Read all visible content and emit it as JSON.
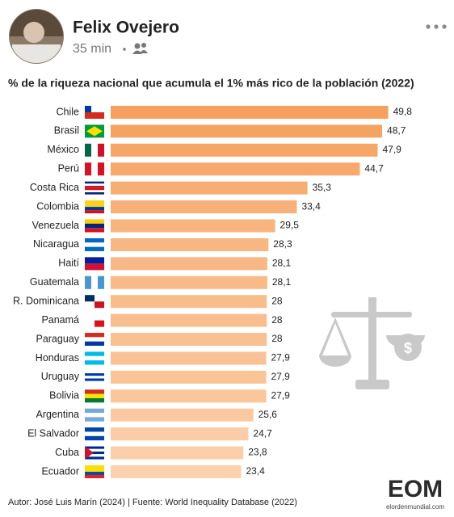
{
  "post": {
    "author": "Felix Ovejero",
    "time": "35 min"
  },
  "chart_data": {
    "type": "bar",
    "orientation": "horizontal",
    "title": "% de la riqueza nacional que acumula el 1% más rico de la población (2022)",
    "categories": [
      "Chile",
      "Brasil",
      "México",
      "Perú",
      "Costa Rica",
      "Colombia",
      "Venezuela",
      "Nicaragua",
      "Haití",
      "Guatemala",
      "R. Dominicana",
      "Panamá",
      "Paraguay",
      "Honduras",
      "Uruguay",
      "Bolivia",
      "Argentina",
      "El Salvador",
      "Cuba",
      "Ecuador"
    ],
    "values": [
      49.8,
      48.7,
      47.9,
      44.7,
      35.3,
      33.4,
      29.5,
      28.3,
      28.1,
      28.1,
      28,
      28,
      28,
      27.9,
      27.9,
      27.9,
      25.6,
      24.7,
      23.8,
      23.4
    ],
    "value_labels": [
      "49,8",
      "48,7",
      "47,9",
      "44,7",
      "35,3",
      "33,4",
      "29,5",
      "28,3",
      "28,1",
      "28,1",
      "28",
      "28",
      "28",
      "27,9",
      "27,9",
      "27,9",
      "25,6",
      "24,7",
      "23,8",
      "23,4"
    ],
    "colors": [
      "#f5a05f",
      "#f5a363",
      "#f6a667",
      "#f6a96b",
      "#f7ae74",
      "#f7b079",
      "#f8b47f",
      "#f8b682",
      "#f8b885",
      "#f9ba88",
      "#f9bc8b",
      "#f9be8e",
      "#f9c091",
      "#fac294",
      "#fac497",
      "#fac69a",
      "#fbc9a0",
      "#fbcca5",
      "#fccfaa",
      "#fcd2ae"
    ],
    "source": "Autor: José Luis Marín  (2024) | Fuente: World Inequality Database (2022)"
  },
  "logo": {
    "name": "EOM",
    "site": "elordenmundial.com"
  }
}
